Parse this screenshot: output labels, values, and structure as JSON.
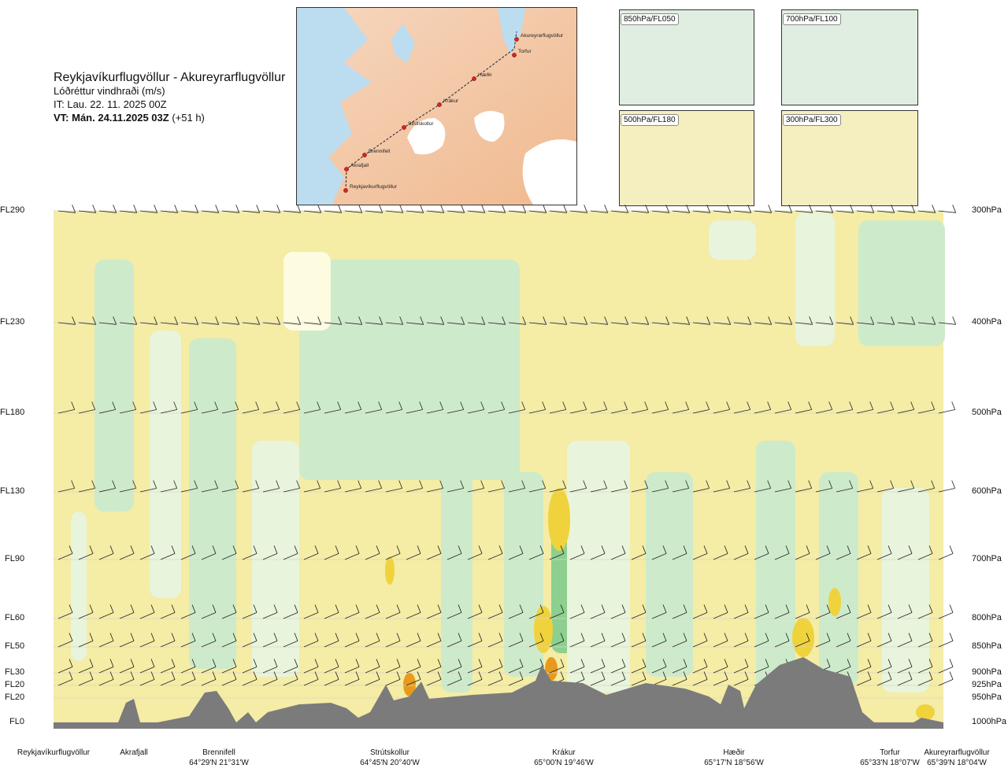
{
  "title": {
    "line1": "Reykjavíkurflugvöllur - Akureyrarflugvöllur",
    "line2": "Lóðréttur vindhraði (m/s)",
    "line3": "IT: Lau. 22. 11. 2025 00Z",
    "line4_bold": "VT: Mán. 24.11.2025 03Z",
    "line4_rest": "(+51 h)"
  },
  "route_map": {
    "waypoints": [
      {
        "name": "Akureyrarflugvöllur"
      },
      {
        "name": "Torfur"
      },
      {
        "name": "Hæðir"
      },
      {
        "name": "Krákur"
      },
      {
        "name": "Strútskollur"
      },
      {
        "name": "Brennifell"
      },
      {
        "name": "Akrafjall"
      },
      {
        "name": "Reykjavíkurflugvöllur"
      }
    ]
  },
  "mini_maps": [
    {
      "label": "850hPa/FL050"
    },
    {
      "label": "700hPa/FL100"
    },
    {
      "label": "500hPa/FL180"
    },
    {
      "label": "300hPa/FL300"
    }
  ],
  "chart_data": {
    "type": "heatmap",
    "title": "Lóðréttur vindhraði (m/s)",
    "levels": [
      {
        "fl": "FL290",
        "hpa": "300hPa"
      },
      {
        "fl": "FL230",
        "hpa": "400hPa"
      },
      {
        "fl": "FL180",
        "hpa": "500hPa"
      },
      {
        "fl": "FL130",
        "hpa": "600hPa"
      },
      {
        "fl": "FL90",
        "hpa": "700hPa"
      },
      {
        "fl": "FL60",
        "hpa": "800hPa"
      },
      {
        "fl": "FL50",
        "hpa": "850hPa"
      },
      {
        "fl": "FL30",
        "hpa": "900hPa"
      },
      {
        "fl": "FL20",
        "hpa": "925hPa"
      },
      {
        "fl": "FL20",
        "hpa": "950hPa"
      },
      {
        "fl": "FL0",
        "hpa": "1000hPa"
      }
    ],
    "x_locations": [
      {
        "name": "Reykjavíkurflugvöllur",
        "coord": ""
      },
      {
        "name": "Akrafjall",
        "coord": ""
      },
      {
        "name": "Brennifell",
        "coord": "64°29'N 21°31'W"
      },
      {
        "name": "Strútskollur",
        "coord": "64°45'N 20°40'W"
      },
      {
        "name": "Krákur",
        "coord": "65°00'N 19°46'W"
      },
      {
        "name": "Hæðir",
        "coord": "65°17'N 18°56'W"
      },
      {
        "name": "Torfur",
        "coord": "65°33'N 18°07'W"
      },
      {
        "name": "Akureyrarflugvöllur",
        "coord": "65°39'N 18°04'W"
      }
    ],
    "colors": {
      "sinking": "#f5eca5",
      "neutral": "#fdfbe0",
      "weak_rise": "#e8f4dc",
      "rise": "#cdebcb",
      "strong_rise": "#8ccf8f",
      "strong_sink": "#f0d23c",
      "stronger_sink": "#e89a1c",
      "terrain": "#7b7b7b"
    }
  }
}
